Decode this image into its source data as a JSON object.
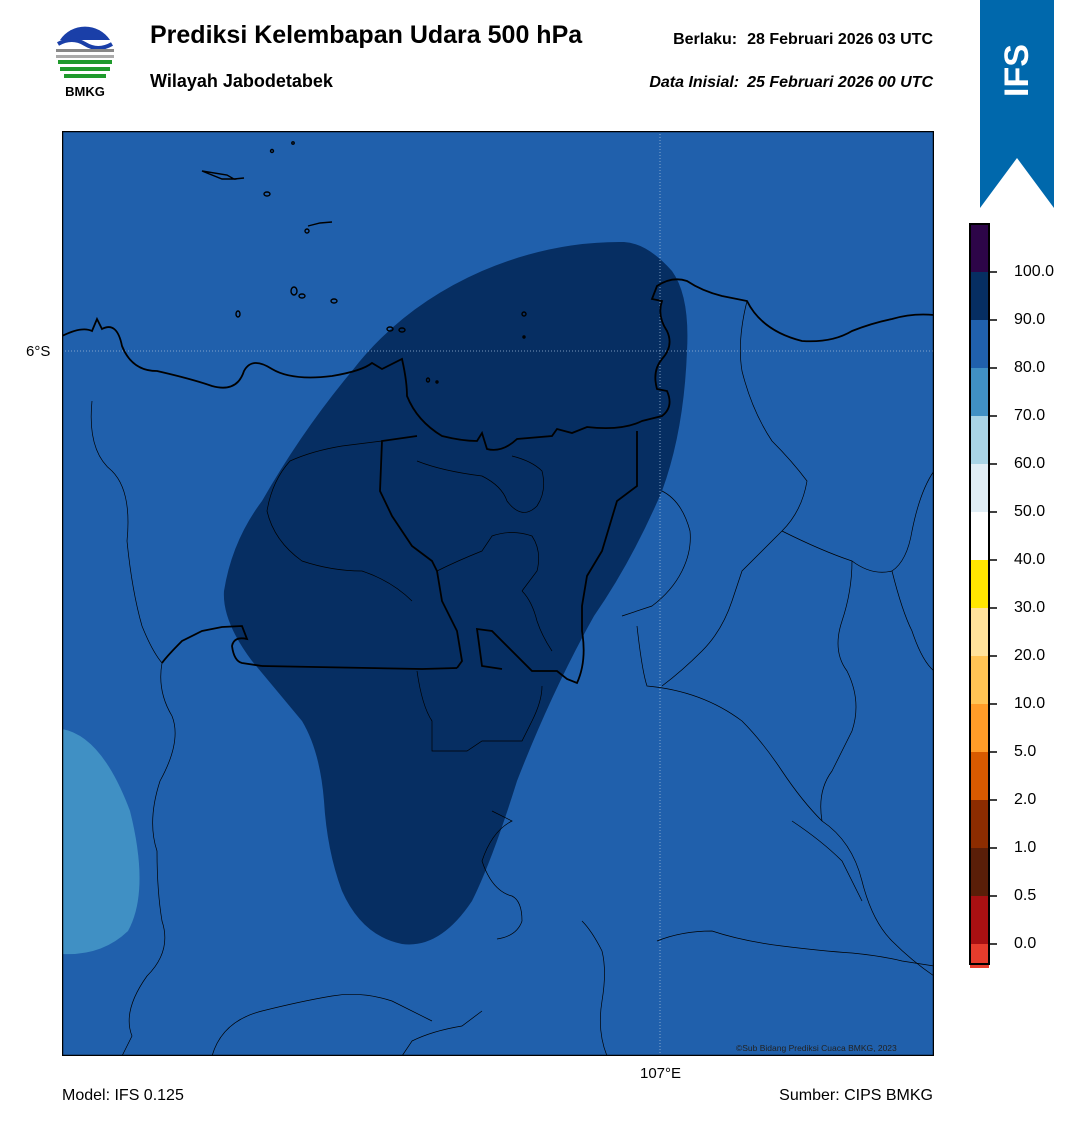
{
  "header": {
    "title": "Prediksi Kelembapan Udara 500 hPa",
    "subtitle": "Wilayah Jabodetabek",
    "valid_label": "Berlaku:",
    "valid_value": "28 Februari 2026 03 UTC",
    "init_label": "Data Inisial:",
    "init_value": "25 Februari 2026 00 UTC"
  },
  "logo": {
    "text": "BMKG",
    "icon": "bmkg-logo-icon"
  },
  "banner": {
    "text": "IFS",
    "color": "#0068ac"
  },
  "map": {
    "lat_label": "6°S",
    "lon_label": "107°E",
    "credit": "©Sub Bidang Prediksi Cuaca BMKG, 2023",
    "fill_colors": {
      "band_80_90": "#2060ac",
      "band_90_100": "#062e62",
      "band_70_80": "#4090c4"
    }
  },
  "colorbar": {
    "labels": [
      "100.0",
      "90.0",
      "80.0",
      "70.0",
      "60.0",
      "50.0",
      "40.0",
      "30.0",
      "20.0",
      "10.0",
      "5.0",
      "2.0",
      "1.0",
      "0.5",
      "0.0"
    ],
    "colors": [
      "#2d0548",
      "#062e62",
      "#2060ac",
      "#4090c4",
      "#a8d4e6",
      "#e0eef6",
      "#ffffff",
      "#ffe600",
      "#ffe29a",
      "#ffc454",
      "#ff9c28",
      "#d85a00",
      "#8c2c00",
      "#5a1e08",
      "#a81012",
      "#e63c2c"
    ]
  },
  "footer": {
    "model": "Model: IFS 0.125",
    "source": "Sumber: CIPS BMKG"
  }
}
